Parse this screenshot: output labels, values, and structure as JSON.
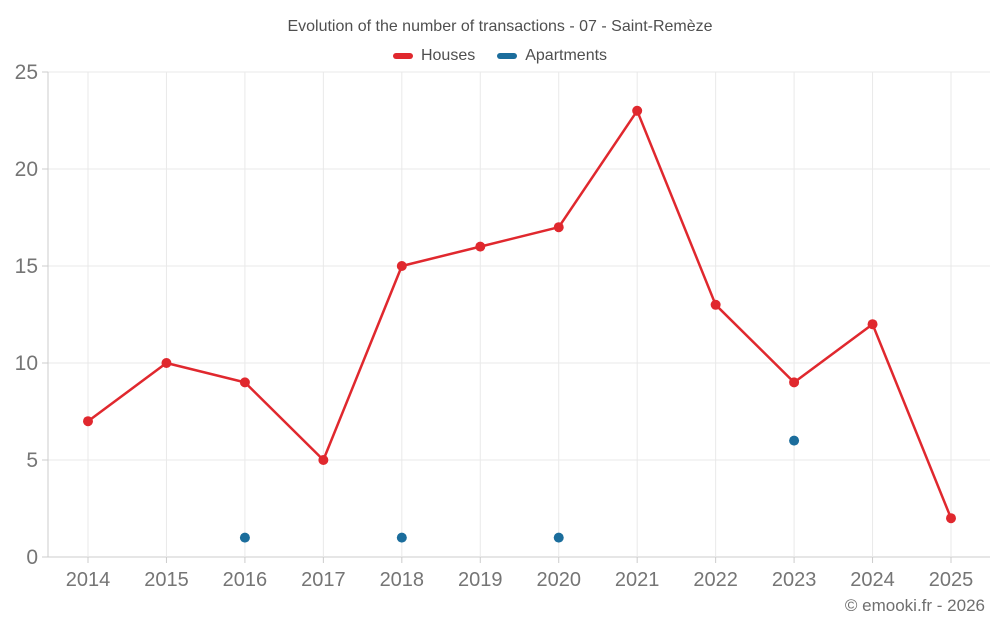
{
  "page": {
    "copyright": "© emooki.fr - 2026"
  },
  "chart_data": {
    "type": "line",
    "title": "Evolution of the number of transactions - 07 - Saint-Remèze",
    "x": [
      "2014",
      "2015",
      "2016",
      "2017",
      "2018",
      "2019",
      "2020",
      "2021",
      "2022",
      "2023",
      "2024",
      "2025"
    ],
    "series": [
      {
        "name": "Houses",
        "color": "#e0282e",
        "line": true,
        "values": [
          7,
          10,
          9,
          5,
          15,
          16,
          17,
          23,
          13,
          9,
          12,
          2
        ]
      },
      {
        "name": "Apartments",
        "color": "#1b6d9c",
        "line": false,
        "values": [
          null,
          null,
          1,
          null,
          1,
          null,
          1,
          null,
          null,
          6,
          null,
          null
        ]
      }
    ],
    "xlabel": "",
    "ylabel": "",
    "ylim": [
      0,
      25
    ],
    "yticks": [
      0,
      5,
      10,
      15,
      20,
      25
    ],
    "grid": true,
    "legend_position": "top",
    "grid_color": "#e9e9e9",
    "axis_color": "#cccccc",
    "label_color": "#757575"
  }
}
